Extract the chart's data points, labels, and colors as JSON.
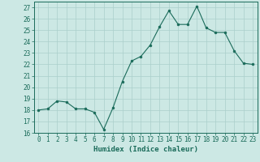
{
  "x": [
    0,
    1,
    2,
    3,
    4,
    5,
    6,
    7,
    8,
    9,
    10,
    11,
    12,
    13,
    14,
    15,
    16,
    17,
    18,
    19,
    20,
    21,
    22,
    23
  ],
  "y": [
    18,
    18.1,
    18.8,
    18.7,
    18.1,
    18.1,
    17.8,
    16.3,
    18.2,
    20.5,
    22.3,
    22.7,
    23.7,
    25.3,
    26.7,
    25.5,
    25.5,
    27.1,
    25.2,
    24.8,
    24.8,
    23.2,
    22.1,
    22.0
  ],
  "xlabel": "Humidex (Indice chaleur)",
  "ylim": [
    16,
    27.5
  ],
  "xlim": [
    -0.5,
    23.5
  ],
  "yticks": [
    16,
    17,
    18,
    19,
    20,
    21,
    22,
    23,
    24,
    25,
    26,
    27
  ],
  "xticks": [
    0,
    1,
    2,
    3,
    4,
    5,
    6,
    7,
    8,
    9,
    10,
    11,
    12,
    13,
    14,
    15,
    16,
    17,
    18,
    19,
    20,
    21,
    22,
    23
  ],
  "line_color": "#1a6b5a",
  "marker_color": "#1a6b5a",
  "bg_color": "#cce8e4",
  "grid_color": "#aacfcb",
  "tick_color": "#1a6b5a",
  "label_color": "#1a6b5a",
  "spine_color": "#1a6b5a",
  "tick_fontsize": 5.5,
  "label_fontsize": 6.5
}
